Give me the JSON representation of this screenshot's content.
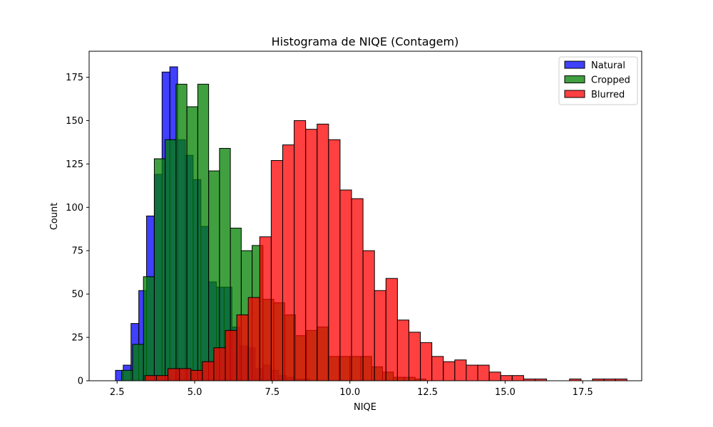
{
  "chart_data": {
    "type": "histogram",
    "title": "Histograma de NIQE (Contagem)",
    "xlabel": "NIQE",
    "ylabel": "Count",
    "xlim": [
      1.6,
      19.4
    ],
    "ylim": [
      0,
      190
    ],
    "xticks": [
      2.5,
      5.0,
      7.5,
      10.0,
      12.5,
      15.0,
      17.5
    ],
    "xtick_labels": [
      "2.5",
      "5.0",
      "7.5",
      "10.0",
      "12.5",
      "15.0",
      "17.5"
    ],
    "yticks": [
      0,
      25,
      50,
      75,
      100,
      125,
      150,
      175
    ],
    "ytick_labels": [
      "0",
      "25",
      "50",
      "75",
      "100",
      "125",
      "150",
      "175"
    ],
    "grid": false,
    "legend_position": "top-right",
    "series": [
      {
        "name": "Natural",
        "color": "#0000ff",
        "bin_start": 2.45,
        "bin_width": 0.25,
        "values": [
          6,
          9,
          33,
          52,
          95,
          119,
          178,
          181,
          139,
          130,
          116,
          89,
          57,
          54,
          54,
          31,
          20,
          19,
          7,
          9,
          6,
          3,
          2,
          1,
          1
        ]
      },
      {
        "name": "Cropped",
        "color": "#008000",
        "bin_start": 2.65,
        "bin_width": 0.35,
        "values": [
          6,
          21,
          60,
          128,
          139,
          171,
          158,
          171,
          121,
          134,
          88,
          75,
          78,
          47,
          45,
          38,
          26,
          29,
          31,
          14,
          14,
          14,
          14,
          8,
          5,
          2,
          2,
          1
        ]
      },
      {
        "name": "Blurred",
        "color": "#ff0000",
        "bin_start": 3.4,
        "bin_width": 0.3696,
        "values": [
          3,
          3,
          7,
          7,
          6,
          11,
          19,
          29,
          38,
          48,
          83,
          127,
          136,
          150,
          145,
          148,
          139,
          110,
          105,
          75,
          52,
          59,
          35,
          28,
          22,
          14,
          11,
          12,
          9,
          9,
          5,
          3,
          3,
          1,
          1,
          0,
          0,
          1,
          0,
          1,
          1,
          1
        ]
      }
    ]
  }
}
